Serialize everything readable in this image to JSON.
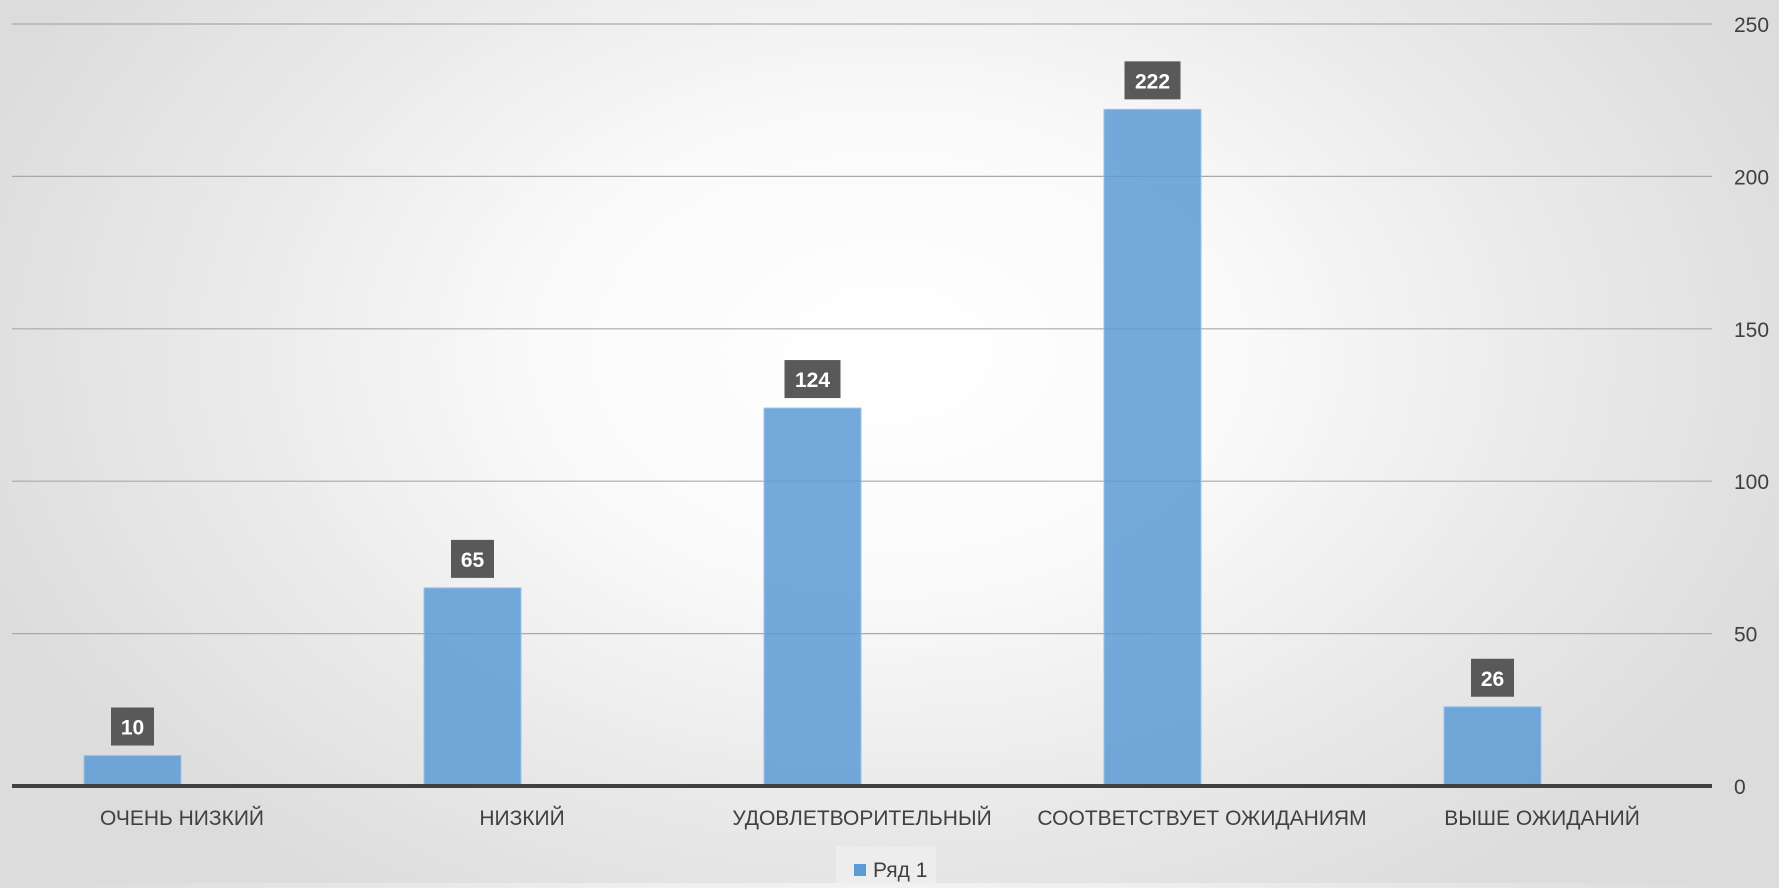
{
  "chart_data": {
    "type": "bar",
    "categories": [
      "ОЧЕНЬ НИЗКИЙ",
      "НИЗКИЙ",
      "УДОВЛЕТВОРИТЕЛЬНЫЙ",
      "СООТВЕТСТВУЕТ ОЖИДАНИЯМ",
      "ВЫШЕ ОЖИДАНИЙ"
    ],
    "series": [
      {
        "name": "Ряд 1",
        "values": [
          10,
          65,
          124,
          222,
          26
        ],
        "color": "#5b9bd5"
      }
    ],
    "ylim": [
      0,
      250
    ],
    "y_ticks": [
      0,
      50,
      100,
      150,
      200,
      250
    ],
    "y_axis_side": "right",
    "grid": true,
    "data_labels": true,
    "legend_position": "bottom",
    "colors": {
      "bar": "#5b9bd5",
      "label_bg": "#595959",
      "label_text": "#ffffff",
      "axis_text": "#404040"
    }
  }
}
